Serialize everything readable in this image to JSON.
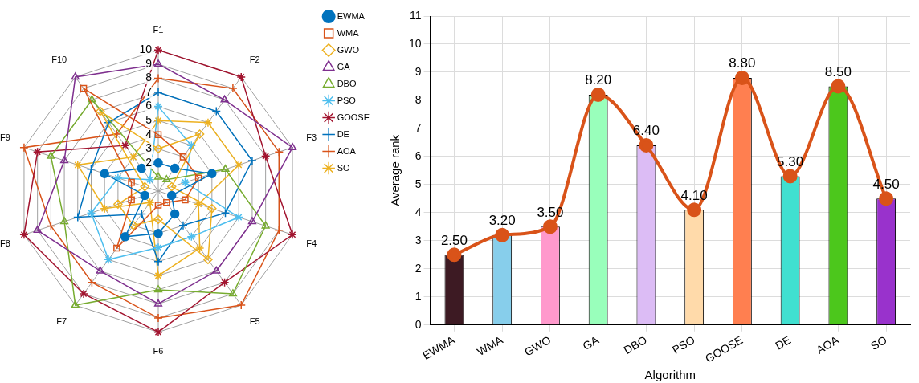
{
  "chart_data": [
    {
      "type": "radar",
      "categories": [
        "F1",
        "F2",
        "F3",
        "F4",
        "F5",
        "F6",
        "F7",
        "F8",
        "F9",
        "F10"
      ],
      "ylim": [
        0,
        10
      ],
      "yticks": [
        2,
        3,
        4,
        5,
        6,
        7,
        8,
        9,
        10
      ],
      "grid": true,
      "legend": "top right",
      "series": [
        {
          "name": "EWMA",
          "color": "#0072bd",
          "marker": "circle",
          "values": [
            2,
            2,
            4,
            1,
            2,
            3,
            4,
            1,
            4,
            2
          ]
        },
        {
          "name": "WMA",
          "color": "#d95319",
          "marker": "square",
          "values": [
            4,
            3,
            3,
            2,
            1,
            1,
            5,
            2,
            2,
            9
          ]
        },
        {
          "name": "GWO",
          "color": "#edb120",
          "marker": "diamond",
          "values": [
            3,
            5,
            1,
            4,
            6,
            2,
            3,
            3,
            1,
            7
          ]
        },
        {
          "name": "GA",
          "color": "#7e2f8e",
          "marker": "triangle",
          "values": [
            9,
            8,
            10,
            7,
            7,
            8,
            7,
            9,
            7,
            10
          ]
        },
        {
          "name": "DBO",
          "color": "#77ac30",
          "marker": "triangle",
          "values": [
            1,
            1,
            5,
            8,
            9,
            7,
            10,
            7,
            8,
            8
          ]
        },
        {
          "name": "PSO",
          "color": "#4dbeee",
          "marker": "star",
          "values": [
            6,
            4,
            2,
            6,
            4,
            4,
            6,
            5,
            3,
            1
          ]
        },
        {
          "name": "GOOSE",
          "color": "#a2142f",
          "marker": "star",
          "values": [
            10,
            10,
            8,
            10,
            8,
            10,
            9,
            10,
            9,
            4
          ]
        },
        {
          "name": "DE",
          "color": "#0072bd",
          "marker": "cross",
          "values": [
            7,
            7,
            7,
            5,
            3,
            5,
            2,
            6,
            5,
            6
          ]
        },
        {
          "name": "AOA",
          "color": "#d95319",
          "marker": "cross",
          "values": [
            8,
            9,
            9,
            9,
            10,
            9,
            8,
            8,
            10,
            5
          ]
        },
        {
          "name": "SO",
          "color": "#edb120",
          "marker": "star",
          "values": [
            5,
            6,
            6,
            3,
            5,
            6,
            1,
            4,
            6,
            3
          ]
        }
      ]
    },
    {
      "type": "bar",
      "xlabel": "Algorithm",
      "ylabel": "Average rank",
      "categories": [
        "EWMA",
        "WMA",
        "GWO",
        "GA",
        "DBO",
        "PSO",
        "GOOSE",
        "DE",
        "AOA",
        "SO"
      ],
      "ylim": [
        0,
        11
      ],
      "yticks": [
        0,
        1,
        2,
        3,
        4,
        5,
        6,
        7,
        8,
        9,
        10,
        11
      ],
      "grid": true,
      "series": [
        {
          "type": "bar",
          "colors": [
            "#3d1a23",
            "#87ceeb",
            "#ff99cc",
            "#99ffbb",
            "#dcbcf5",
            "#ffdaaa",
            "#ff7f50",
            "#40e0d0",
            "#4cc71c",
            "#9932cc"
          ],
          "values": [
            2.5,
            3.2,
            3.5,
            8.2,
            6.4,
            4.1,
            8.8,
            5.3,
            8.5,
            4.5
          ],
          "value_labels": [
            "2.50",
            "3.20",
            "3.50",
            "8.20",
            "6.40",
            "4.10",
            "8.80",
            "5.30",
            "8.50",
            "4.50"
          ]
        },
        {
          "type": "line",
          "color": "#d95319",
          "marker": "circle",
          "values": [
            2.5,
            3.2,
            3.5,
            8.2,
            6.4,
            4.1,
            8.8,
            5.3,
            8.5,
            4.5
          ]
        }
      ]
    }
  ]
}
